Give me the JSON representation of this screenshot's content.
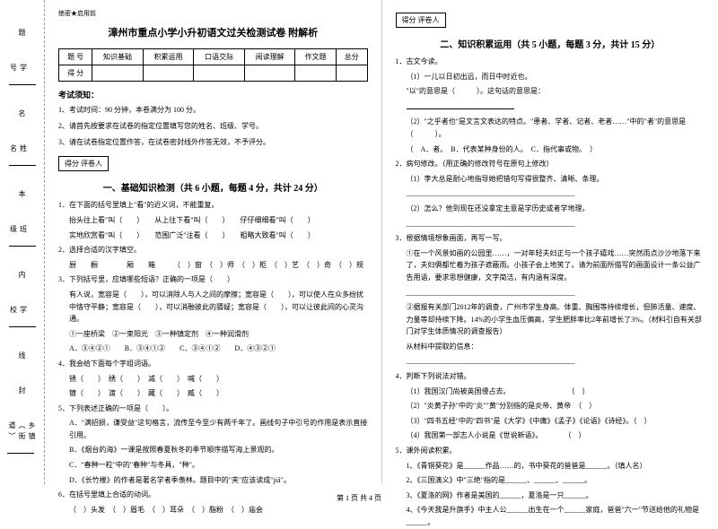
{
  "margin": {
    "labels": [
      "学号",
      "姓名",
      "班级",
      "学校",
      "乡镇（街道）"
    ],
    "side": [
      "题",
      "名",
      "本",
      "内",
      "线",
      "封"
    ]
  },
  "secret": "绝密★启用前",
  "title": "漳州市重点小学小升初语文过关检测试卷 附解析",
  "scoreHead": [
    "题 号",
    "知识基础",
    "积累运用",
    "口语交际",
    "阅读理解",
    "作文题",
    "总分"
  ],
  "scoreRow": "得 分",
  "noticeH": "考试须知：",
  "notices": [
    "1、考试时间：90 分钟，本卷满分为 100 分。",
    "2、请首先按要求在试卷的指定位置填写您的姓名、班级、学号。",
    "3、请在试卷指定位置作答，在试卷密封线外作答无效，不予评分。"
  ],
  "gradeBox": "得分  评卷人",
  "sec1": "一、基础知识检测（共 6 小题，每题 4 分，共计 24 分）",
  "q1": {
    "stem": "1．在下面的括号里填上\"看\"的近义词，不能重复。",
    "lines": [
      "抬头往上看\"叫（　　）　　从上往下看\"叫（　　）　　仔仔细细看\"叫（　　）",
      "实地欣赏看\"叫（　　）　　范围广泛\"注看（　　）　　粗略大致看\"叫（　　）"
    ]
  },
  "q2": {
    "stem": "2．选择合适的汉字填空。",
    "line": "厨　　橱　　　　厢　　箱　　　（　）窗　（　）师　（　）柜　（　）艺　（　）奇　（　）规"
  },
  "q3": {
    "stem": "3．下列括号里，应填哪些短语？正确的一项是（　　）",
    "body": "有人说，宽容是（　　），可以消除人与人之间的摩擦；宽容是（　　），可以使人在众多纷扰中恪守平静；宽容是（　　），可以消融彼此的猜疑；宽容是（　　），可以让彼此间的心灵沟通。",
    "opts": "①一座桥梁　②一束阳光　③一种镇定剂　④一种润滑剂",
    "choices": "A．③④②①　　B．③④①②　　C．③④①②　　D．④③②①"
  },
  "q4": {
    "stem": "4．我会给下面每个字组词语。",
    "lines": [
      "锈（　　）　绣（　　）　减（　　）　喊（　　）",
      "镀（　　）　渡（　　）　藏（　　）　臧（　　）"
    ]
  },
  "q5": {
    "stem": "5．下列表述正确的一项是（　　）。",
    "a": "A．\"满招损，谦受益\"这句格言，流传至今至少有两千年了。画线句子中引号的作用是表示直接引用。",
    "b": "B．《烟台的海》一课是按照春夏秋冬的季节顺序描写海上景观的。",
    "c": "C．\"春种一粒\"中的\"春种\"与冬具，\"种\"。",
    "d": "D．《长竹楼》的作者是著名学者季羡林。题目中的\"夹\"应该读成\"jiā\"。"
  },
  "q6": {
    "stem": "6．在括号里填上合适的动词。",
    "line": "（　）头发　（　）眉毛　（　）耳朵　（　）脂粉　（　）庙会"
  },
  "sec2": "二、知识积累运用（共 5 小题，每题 3 分，共计 15 分）",
  "q2_1": {
    "stem": "1．古文今读。",
    "a": "（1）一儿以日初出远，而日中时近也。",
    "b": "\"以\"的意思是（　　　）。这句话的意思是：",
    "c": "（2）\"之乎者也\"是文言文表达的特点。\"患者、学者、记者、老者……\"中的\"者\"的意思是（　　　）。",
    "opts": "（　A．者。　B．代表某种身份的人。　C．指代事或物。　）"
  },
  "q2_2": {
    "stem": "2．病句修改。（用正确的修改符号在原句上修改）",
    "a": "（1）李大总是耐心地指导她把错句写得很整齐、清晰、条理。",
    "line1": "_______________________________________________",
    "b": "（2）怎么？他到现在还没拿定主意是学历史或者学地理。",
    "line2": "_______________________________________________"
  },
  "q2_3": {
    "stem": "3．根据情境想象画面，再写一写。",
    "a": "①在一个风景如画的公园里……，一对年轻夫妇正与一个孩子嬉戏……突然雨点沙沙地落下来了，夫妇俩都忙着为孩子遮蔽雨。小孩子会上地笑了。请为前面所描写的画面设计一条公益广告用语，要求思想健康，文字简洁，有内涵有深度。",
    "line1": "_______________________________________________",
    "b": "②据报有关部门2012年的调查，广州市学生身高、体重、胸围等持续增长，但肺活量、速度、力量等却持续下降。14%的小学生血压偏高，学生肥胖率比2年前增长了3%。（材料引自有关部门对学生体质情况的调查报告）",
    "c": "从材料中提取的信息：",
    "line2": "_______________________________________________"
  },
  "q2_4": {
    "stem": "4．判断下列说法对错。",
    "items": [
      "（1）我国汉门尚被英国侵占去。　　　　　　　　　（　）",
      "（2）\"炎黄子孙\"中的\"炎\"\"黄\"分别指的是炎帝、黄帝　（　）",
      "（3）\"四书五经\"中的\"四书\"是《大学》《中庸》《孟子》《论语》《诗经》。（　）",
      "（4）我国第一部志人小说是《世说新语》。　　　　（　）"
    ]
  },
  "q2_5": {
    "stem": "5．课外阅读积累。",
    "a": "1、《青铜葵花》是______作品……的，书中葵花的爸爸是______。（填人名）",
    "b": "2、《三国演义》中\"三绝\"指的是______、______、______。",
    "c": "3、《夏洛的网》作者是美国的______，夏洛是一只______。",
    "d": "4、《今天我是升旗手》中主人公______出生在一个______家庭，爸爸\"六一\"节送给他的礼物是______。"
  },
  "footer": "第 1 页 共 4 页"
}
